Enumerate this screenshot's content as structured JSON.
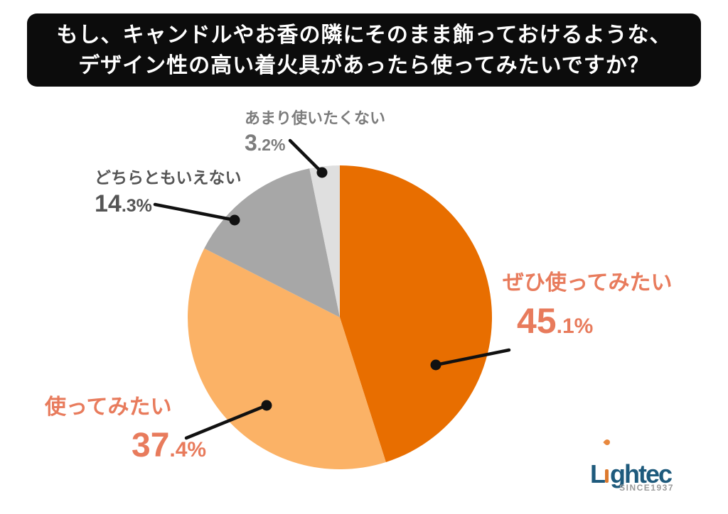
{
  "title": {
    "line1": "もし、キャンドルやお香の隣にそのまま飾っておけるような、",
    "line2": "デザイン性の高い着火具があったら使ってみたいですか？"
  },
  "chart_data": {
    "type": "pie",
    "title": "もし、キャンドルやお香の隣にそのまま飾っておけるような、デザイン性の高い着火具があったら使ってみたいですか？",
    "unit": "%",
    "direction": "clockwise",
    "start_angle_deg": 0,
    "legend_position": "none (callout labels with leader lines)",
    "categories": [
      "ぜひ使ってみたい",
      "使ってみたい",
      "どちらともいえない",
      "あまり使いたくない"
    ],
    "values": [
      45.1,
      37.4,
      14.3,
      3.2
    ],
    "center": [
      478,
      447
    ],
    "radius": 214,
    "leader_line_color": "#111111",
    "slices": [
      {
        "key": "zehi-tsukattemitai",
        "label": "ぜひ使ってみたい",
        "value": 45.1,
        "value_int": "45",
        "value_frac": ".1%",
        "color": "#E86E00",
        "label_color": "#E87B5C",
        "leader": {
          "dot": [
            613,
            514
          ],
          "end": [
            716,
            493
          ]
        }
      },
      {
        "key": "tsukattemitai",
        "label": "使ってみたい",
        "value": 37.4,
        "value_int": "37",
        "value_frac": ".4%",
        "color": "#FBB266",
        "label_color": "#E87B5C",
        "leader": {
          "dot": [
            375,
            571
          ],
          "end": [
            262,
            617
          ]
        }
      },
      {
        "key": "dochiratomo-ienai",
        "label": "どちらともいえない",
        "value": 14.3,
        "value_int": "14",
        "value_frac": ".3%",
        "color": "#A7A7A7",
        "label_color": "#555555",
        "leader": {
          "dot": [
            330,
            310
          ],
          "end": [
            218,
            288
          ]
        }
      },
      {
        "key": "amari-tsukaitakunai",
        "label": "あまり使いたくない",
        "value": 3.2,
        "value_int": "3",
        "value_frac": ".2%",
        "color": "#DFDFDF",
        "label_color": "#7C7C7C",
        "leader": {
          "dot": [
            453,
            243
          ],
          "end": [
            408,
            198
          ]
        }
      }
    ]
  },
  "logo": {
    "name": "Lightec",
    "part1": "L",
    "part2": "ghtec",
    "tagline": "SINCE1937",
    "brand_blue": "#1E5A7C",
    "flame_orange": "#E0812F"
  },
  "colors": {
    "background": "#FFFFFF",
    "title_banner_bg": "#0C0C0C",
    "title_text": "#FFFFFF"
  }
}
